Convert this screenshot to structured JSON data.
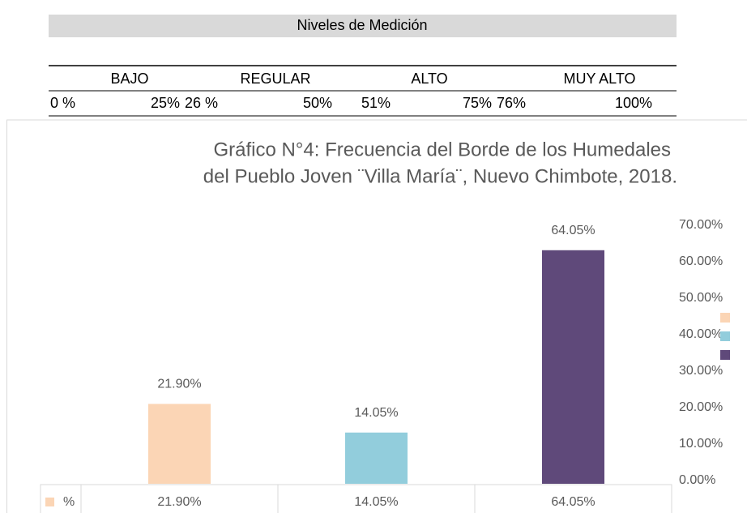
{
  "table": {
    "title": "Niveles de Medición",
    "levels": [
      "BAJO",
      "REGULAR",
      "ALTO",
      "MUY ALTO"
    ],
    "ranges": [
      [
        "0 %",
        "25%"
      ],
      [
        "26 %",
        "50%"
      ],
      [
        "51%",
        "75%"
      ],
      [
        "76%",
        "100%"
      ]
    ]
  },
  "chart_data": {
    "type": "bar",
    "title": [
      "Gráfico N°4:  Frecuencia del Borde de los Humedales",
      "del Pueblo Joven ¨Villa María¨, Nuevo Chimbote, 2018."
    ],
    "categories": [
      null,
      null,
      null
    ],
    "series": [
      {
        "name": "%",
        "colors": [
          "#fbd5b5",
          "#92cddc",
          "#5f497a"
        ],
        "values": [
          21.9,
          14.05,
          64.05
        ],
        "value_labels": [
          "21.90%",
          "14.05%",
          "64.05%"
        ]
      }
    ],
    "ylim": [
      0,
      70
    ],
    "yticks": [
      {
        "value": 0,
        "label": "0.00%"
      },
      {
        "value": 10,
        "label": "10.00%"
      },
      {
        "value": 20,
        "label": "20.00%"
      },
      {
        "value": 30,
        "label": "30.00%"
      },
      {
        "value": 40,
        "label": "40.00%"
      },
      {
        "value": 50,
        "label": "50.00%"
      },
      {
        "value": 60,
        "label": "60.00%"
      },
      {
        "value": 70,
        "label": "70.00%"
      }
    ],
    "grid": false
  }
}
